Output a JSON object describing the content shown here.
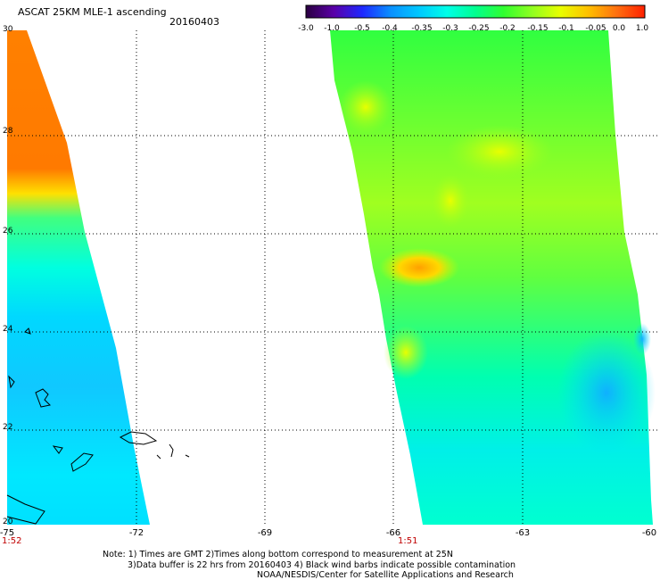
{
  "header": {
    "title": "ASCAT 25KM MLE-1 ascending",
    "date": "20160403"
  },
  "colorbar": {
    "labels": [
      "-3.0",
      "-1.0",
      "-0.5",
      "-0.4",
      "-0.35",
      "-0.3",
      "-0.25",
      "-0.2",
      "-0.15",
      "-0.1",
      "-0.05",
      "0.0",
      "1.0"
    ],
    "colors": [
      "#2a0040",
      "#5a00a8",
      "#1e28ff",
      "#0a90ff",
      "#00c8ff",
      "#00ffe8",
      "#00ff90",
      "#30ff30",
      "#90ff20",
      "#e8ff00",
      "#ffc000",
      "#ff7010",
      "#ff2000"
    ]
  },
  "axes": {
    "x_ticks": [
      "-75",
      "-72",
      "-69",
      "-66",
      "-63",
      "-60"
    ],
    "y_ticks": [
      "30",
      "28",
      "26",
      "24",
      "22",
      "20"
    ]
  },
  "times": {
    "left": "1:52",
    "right": "1:51"
  },
  "notes": {
    "line1": "Note: 1) Times are GMT 2)Times along bottom correspond to measurement at 25N",
    "line2": "3)Data buffer is 22 hrs from 20160403 4) Black wind barbs indicate possible contamination",
    "line3": "NOAA/NESDIS/Center for Satellite Applications and Research"
  }
}
